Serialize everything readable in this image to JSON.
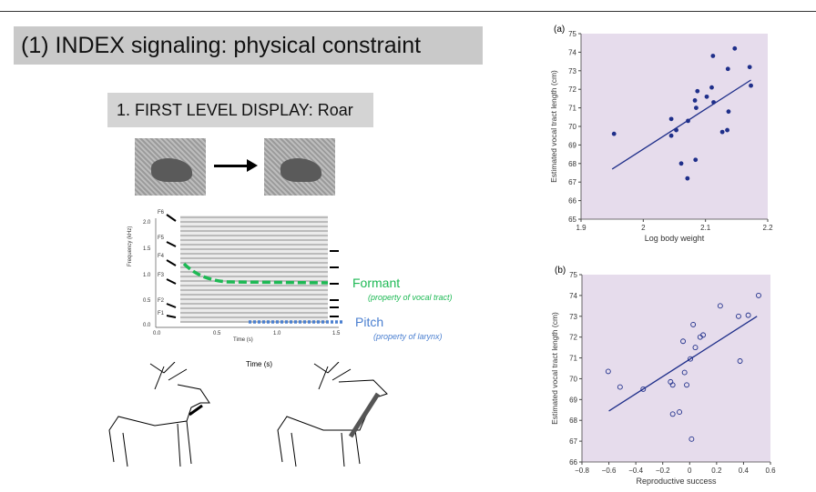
{
  "slide": {
    "title": "(1) INDEX signaling: physical constraint",
    "subtitle": "1. FIRST LEVEL DISPLAY: Roar",
    "formant_label": "Formant",
    "formant_note": "(property of vocal tract)",
    "pitch_label": "Pitch",
    "pitch_note": "(property of larynx)",
    "spectrogram": {
      "ylabel": "Frequency (kHz)",
      "xlabel": "Time (s)",
      "xlabel2": "Time (s)",
      "yticks": [
        "2.0",
        "1.5",
        "1.0",
        "0.5",
        "0.0"
      ],
      "xticks": [
        "0.0",
        "0.5",
        "1.0",
        "1.5"
      ],
      "formants": [
        "F6",
        "F5",
        "F4",
        "F3",
        "F2",
        "F1"
      ]
    },
    "colors": {
      "formant": "#1db954",
      "pitch": "#4a7fd0",
      "plot_bg": "#e6dcec",
      "marker": "#1f2f8a"
    }
  },
  "chart_data": [
    {
      "type": "scatter",
      "panel": "(a)",
      "xlabel": "Log body weight",
      "ylabel": "Estimated vocal tract length (cm)",
      "xlim": [
        1.9,
        2.2
      ],
      "ylim": [
        65,
        75
      ],
      "xticks": [
        1.9,
        2,
        2.1,
        2.2
      ],
      "yticks": [
        65,
        66,
        67,
        68,
        69,
        70,
        71,
        72,
        73,
        74,
        75
      ],
      "marker": "filled",
      "x": [
        1.953,
        2.045,
        2.045,
        2.053,
        2.072,
        2.061,
        2.071,
        2.083,
        2.085,
        2.087,
        2.084,
        2.102,
        2.11,
        2.112,
        2.113,
        2.127,
        2.135,
        2.137,
        2.136,
        2.147,
        2.171,
        2.173
      ],
      "y": [
        69.6,
        70.4,
        69.5,
        69.8,
        70.3,
        68.0,
        67.2,
        71.4,
        71.0,
        71.9,
        68.2,
        71.6,
        72.1,
        73.8,
        71.3,
        69.7,
        69.8,
        70.8,
        73.1,
        74.2,
        73.2,
        72.2
      ],
      "fit": [
        [
          1.95,
          67.7
        ],
        [
          2.173,
          72.5
        ]
      ]
    },
    {
      "type": "scatter",
      "panel": "(b)",
      "xlabel": "Reproductive success",
      "ylabel": "Estimated vocal tract length (cm)",
      "xlim": [
        -0.8,
        0.6
      ],
      "ylim": [
        66,
        75
      ],
      "xticks": [
        -0.8,
        -0.6,
        -0.4,
        -0.2,
        0,
        0.2,
        0.4,
        0.6
      ],
      "yticks": [
        66,
        67,
        68,
        69,
        70,
        71,
        72,
        73,
        74,
        75
      ],
      "marker": "open",
      "x": [
        -0.605,
        -0.517,
        -0.345,
        -0.142,
        -0.126,
        -0.126,
        -0.076,
        -0.049,
        -0.038,
        -0.022,
        0.005,
        0.026,
        0.014,
        0.042,
        0.078,
        0.1,
        0.227,
        0.363,
        0.435,
        0.374,
        0.512
      ],
      "y": [
        70.35,
        69.6,
        69.5,
        69.85,
        69.7,
        68.3,
        68.4,
        71.8,
        70.3,
        69.7,
        70.95,
        72.6,
        67.1,
        71.5,
        72.0,
        72.1,
        73.5,
        73.0,
        73.05,
        70.85,
        74.0
      ],
      "fit": [
        [
          -0.6,
          68.45
        ],
        [
          0.5,
          73.0
        ]
      ]
    }
  ]
}
